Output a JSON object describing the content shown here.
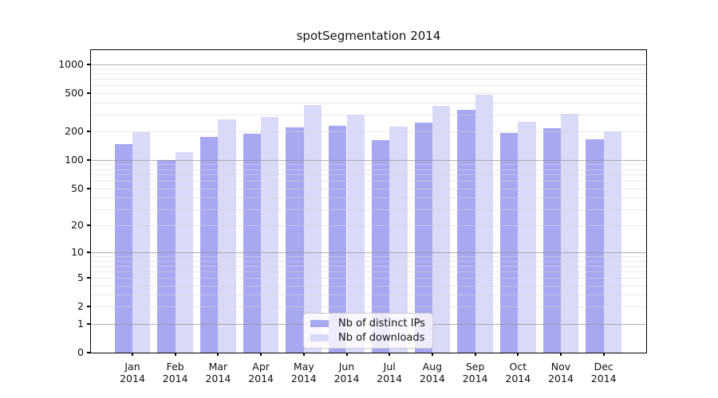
{
  "chart_data": {
    "type": "bar",
    "title": "spotSegmentation 2014",
    "categories": [
      "Jan 2014",
      "Feb 2014",
      "Mar 2014",
      "Apr 2014",
      "May 2014",
      "Jun 2014",
      "Jul 2014",
      "Aug 2014",
      "Sep 2014",
      "Oct 2014",
      "Nov 2014",
      "Dec 2014"
    ],
    "series": [
      {
        "name": "Nb of distinct IPs",
        "color": "#a7a7f2",
        "values": [
          147,
          100,
          176,
          190,
          221,
          229,
          161,
          248,
          333,
          193,
          214,
          165
        ]
      },
      {
        "name": "Nb of downloads",
        "color": "#d9d9f8",
        "values": [
          197,
          121,
          264,
          281,
          375,
          300,
          224,
          366,
          483,
          251,
          303,
          199
        ]
      }
    ],
    "xlabel": "",
    "ylabel": "",
    "yscale": "log1p",
    "ylim": [
      0,
      1400
    ],
    "yticks": [
      0,
      1,
      2,
      5,
      10,
      20,
      50,
      100,
      200,
      500,
      1000
    ],
    "grid": {
      "orientation": "horizontal",
      "drawn_above_bars": true,
      "major_ticks": [
        1,
        10,
        100,
        1000
      ],
      "minor_ticks": [
        2,
        3,
        4,
        5,
        6,
        7,
        8,
        9,
        20,
        30,
        40,
        50,
        60,
        70,
        80,
        90,
        200,
        300,
        400,
        500,
        600,
        700,
        800,
        900
      ]
    },
    "legend": {
      "position": "lower center",
      "entries": [
        "Nb of distinct IPs",
        "Nb of downloads"
      ]
    },
    "colors": {
      "background": "#ffffff",
      "spine": "#000000",
      "bar_distinct_ips": "#a7a7f2",
      "bar_downloads": "#d9d9f8",
      "grid_major": "#969696",
      "grid_minor": "#d7d7d7",
      "text": "#111111"
    }
  }
}
